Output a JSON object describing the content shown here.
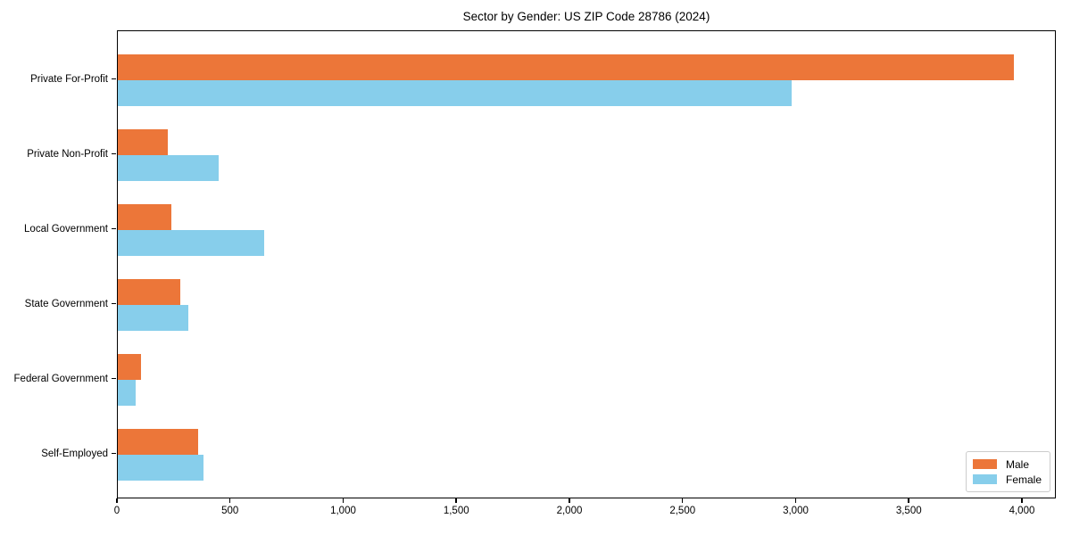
{
  "chart_data": {
    "type": "bar",
    "orientation": "horizontal",
    "title": "Sector by Gender: US ZIP Code 28786 (2024)",
    "categories": [
      "Private For-Profit",
      "Private Non-Profit",
      "Local Government",
      "State Government",
      "Federal Government",
      "Self-Employed"
    ],
    "series": [
      {
        "name": "Male",
        "color": "#EC7639",
        "values": [
          3960,
          220,
          237,
          276,
          103,
          355
        ]
      },
      {
        "name": "Female",
        "color": "#87CEEB",
        "values": [
          2978,
          445,
          647,
          312,
          79,
          379
        ]
      }
    ],
    "xlabel": "",
    "ylabel": "",
    "xlim": [
      0,
      4150
    ],
    "xticks": [
      0,
      500,
      1000,
      1500,
      2000,
      2500,
      3000,
      3500,
      4000
    ],
    "xtick_labels": [
      "0",
      "500",
      "1,000",
      "1,500",
      "2,000",
      "2,500",
      "3,000",
      "3,500",
      "4,000"
    ],
    "grid": false,
    "legend": {
      "position": "lower right"
    },
    "colors": {
      "frame": "#000000",
      "background": "#ffffff"
    }
  }
}
